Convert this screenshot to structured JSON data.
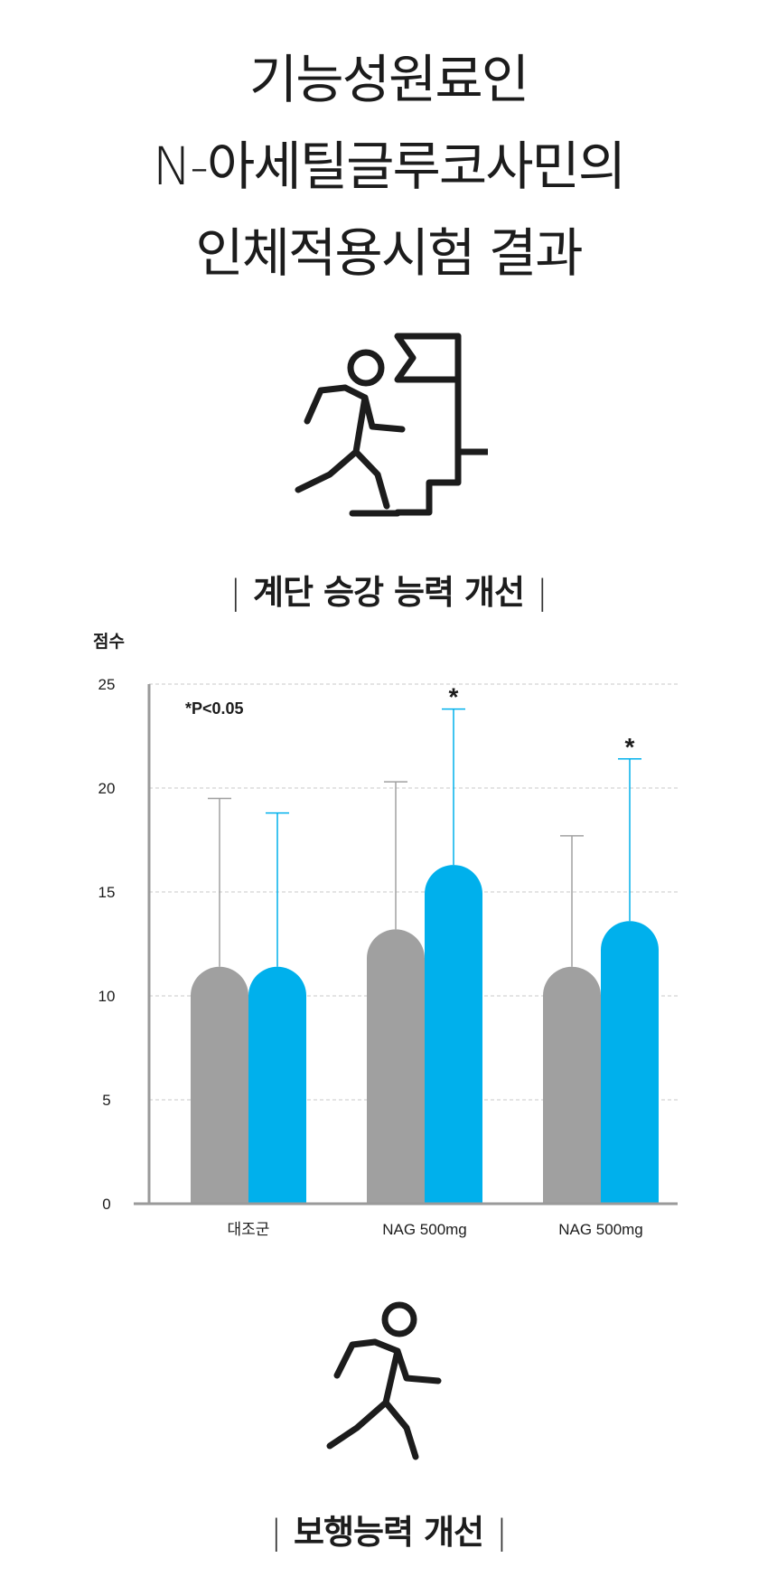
{
  "title": {
    "line1": "기능성원료인",
    "line2": "N-아세틸글루코사민의",
    "line3": "인체적용시험 결과"
  },
  "icons": {
    "stairs": "person-climbing-stairs-flag-icon",
    "walking": "person-walking-icon"
  },
  "section1": {
    "heading": "계단 승강 능력 개선",
    "divider": "|"
  },
  "section2": {
    "heading": "보행능력 개선",
    "divider": "|"
  },
  "colors": {
    "gray": "#a0a0a0",
    "blue": "#00b0ec",
    "axis": "#9a9a9a",
    "text": "#1c1c1c"
  },
  "chart_data": {
    "type": "bar",
    "ylabel": "점수",
    "ylim": [
      0,
      25
    ],
    "yticks": [
      0,
      5,
      10,
      15,
      20,
      25
    ],
    "grid": true,
    "annotation": "*P<0.05",
    "categories": [
      "대조군",
      "NAG 500mg",
      "NAG 500mg"
    ],
    "series": [
      {
        "color": "#a0a0a0",
        "values": [
          11.4,
          13.2,
          11.4
        ],
        "error_upper": [
          19.5,
          20.3,
          17.7
        ]
      },
      {
        "color": "#00b0ec",
        "values": [
          11.4,
          16.3,
          13.6
        ],
        "error_upper": [
          18.8,
          23.8,
          21.4
        ],
        "significant": [
          false,
          true,
          true
        ]
      }
    ],
    "significance_marker": "*"
  }
}
